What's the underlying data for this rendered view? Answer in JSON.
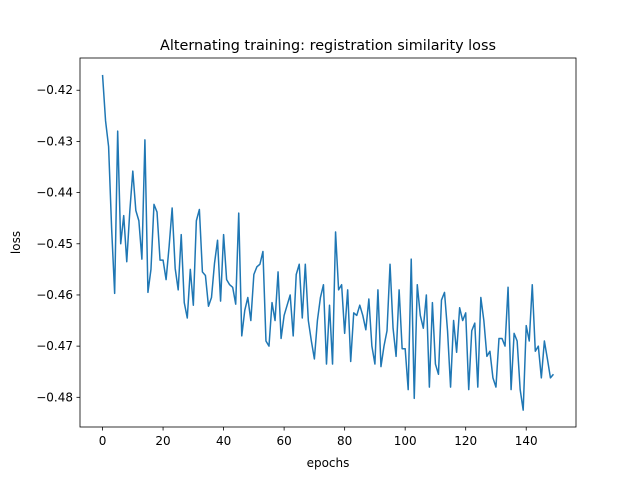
{
  "chart_data": {
    "type": "line",
    "title": "Alternating training: registration similarity loss",
    "x_label": "epochs",
    "y_label": "loss",
    "xlim": [
      -7.45,
      156.45
    ],
    "ylim": [
      -0.4858,
      -0.4137
    ],
    "xticks": [
      0,
      20,
      40,
      60,
      80,
      100,
      120,
      140
    ],
    "yticks": [
      {
        "value": -0.48,
        "label": "−0.48"
      },
      {
        "value": -0.47,
        "label": "−0.47"
      },
      {
        "value": -0.46,
        "label": "−0.46"
      },
      {
        "value": -0.45,
        "label": "−0.45"
      },
      {
        "value": -0.44,
        "label": "−0.44"
      },
      {
        "value": -0.43,
        "label": "−0.43"
      },
      {
        "value": -0.42,
        "label": "−0.42"
      }
    ],
    "series": [
      {
        "color": "#1f77b4",
        "values": [
          -0.417,
          -0.426,
          -0.431,
          -0.447,
          -0.4597,
          -0.428,
          -0.45,
          -0.4445,
          -0.4535,
          -0.4437,
          -0.4358,
          -0.4435,
          -0.4455,
          -0.453,
          -0.4297,
          -0.4595,
          -0.455,
          -0.4423,
          -0.4438,
          -0.4532,
          -0.4532,
          -0.457,
          -0.4505,
          -0.443,
          -0.4548,
          -0.459,
          -0.4482,
          -0.4615,
          -0.4645,
          -0.455,
          -0.462,
          -0.4455,
          -0.4433,
          -0.4555,
          -0.4562,
          -0.4622,
          -0.4605,
          -0.4538,
          -0.4493,
          -0.4612,
          -0.4482,
          -0.457,
          -0.458,
          -0.4585,
          -0.4618,
          -0.444,
          -0.468,
          -0.463,
          -0.4605,
          -0.465,
          -0.456,
          -0.4545,
          -0.454,
          -0.4515,
          -0.469,
          -0.47,
          -0.4615,
          -0.465,
          -0.4555,
          -0.4685,
          -0.464,
          -0.462,
          -0.46,
          -0.468,
          -0.456,
          -0.454,
          -0.4645,
          -0.454,
          -0.465,
          -0.469,
          -0.4725,
          -0.465,
          -0.4605,
          -0.458,
          -0.4735,
          -0.462,
          -0.4735,
          -0.4477,
          -0.459,
          -0.458,
          -0.4675,
          -0.459,
          -0.473,
          -0.4635,
          -0.464,
          -0.462,
          -0.464,
          -0.4668,
          -0.4608,
          -0.47,
          -0.4735,
          -0.459,
          -0.474,
          -0.47,
          -0.467,
          -0.454,
          -0.4665,
          -0.472,
          -0.459,
          -0.4705,
          -0.4705,
          -0.4785,
          -0.453,
          -0.4802,
          -0.458,
          -0.464,
          -0.4665,
          -0.46,
          -0.478,
          -0.4615,
          -0.4735,
          -0.4755,
          -0.461,
          -0.4595,
          -0.467,
          -0.478,
          -0.465,
          -0.4712,
          -0.4625,
          -0.465,
          -0.4635,
          -0.4785,
          -0.467,
          -0.4655,
          -0.478,
          -0.4605,
          -0.465,
          -0.472,
          -0.471,
          -0.4762,
          -0.478,
          -0.4685,
          -0.4685,
          -0.47,
          -0.4585,
          -0.4785,
          -0.4675,
          -0.469,
          -0.4785,
          -0.4825,
          -0.466,
          -0.469,
          -0.458,
          -0.471,
          -0.47,
          -0.4762,
          -0.469,
          -0.4725,
          -0.4762,
          -0.4755
        ]
      }
    ]
  }
}
